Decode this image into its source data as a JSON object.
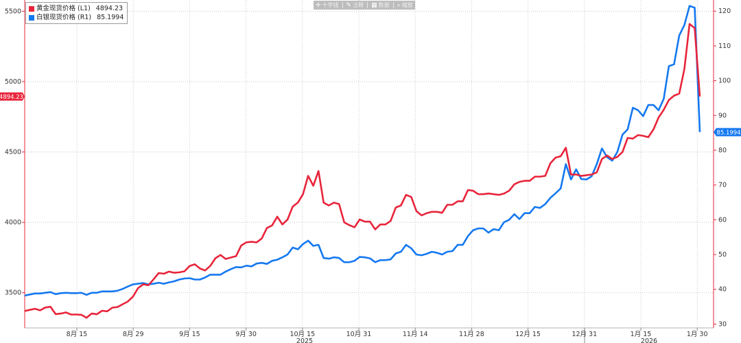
{
  "toolbar": {
    "items": [
      {
        "icon": "crosshair-icon",
        "glyph": "✛",
        "label": "十字线"
      },
      {
        "icon": "pencil-icon",
        "glyph": "✎",
        "label": "注释"
      },
      {
        "icon": "table-icon",
        "glyph": "▦",
        "label": "数据"
      },
      {
        "icon": "zoom-icon",
        "glyph": "⌕",
        "label": "缩放"
      }
    ]
  },
  "legend": [
    {
      "name": "黄金现货价格 (L1)",
      "value": "4894.23",
      "color": "#e8243a"
    },
    {
      "name": "白银现货价格 (R1)",
      "value": "85.1994",
      "color": "#1478f0"
    }
  ],
  "chart_data": {
    "type": "line",
    "year_labels": [
      "2025",
      "2026"
    ],
    "x_ticks": [
      "8月 15",
      "8月 29",
      "9月 15",
      "9月 30",
      "10月 15",
      "10月 31",
      "11月 14",
      "11月 28",
      "12月 15",
      "12月 31",
      "1月 15",
      "1月 30"
    ],
    "left_axis": {
      "min": 3250,
      "max": 5580,
      "ticks": [
        3500,
        4000,
        4500,
        5000,
        5500
      ],
      "last_value_label": "4894.23"
    },
    "right_axis": {
      "min": 28.9,
      "max": 123.2,
      "ticks": [
        30,
        40,
        50,
        60,
        70,
        80,
        90,
        100,
        110,
        120
      ],
      "last_value_label": "85.1994"
    },
    "grid": true,
    "series": [
      {
        "name": "黄金现货价格 (L1)",
        "axis": "left",
        "color": "#e8243a",
        "values": [
          3370,
          3378,
          3386,
          3375,
          3395,
          3400,
          3348,
          3352,
          3360,
          3345,
          3345,
          3343,
          3322,
          3352,
          3347,
          3372,
          3368,
          3394,
          3398,
          3418,
          3437,
          3472,
          3533,
          3560,
          3553,
          3595,
          3640,
          3635,
          3650,
          3642,
          3645,
          3652,
          3690,
          3702,
          3672,
          3658,
          3690,
          3745,
          3768,
          3740,
          3750,
          3760,
          3835,
          3858,
          3862,
          3858,
          3885,
          3960,
          3978,
          4040,
          3985,
          4020,
          4112,
          4140,
          4200,
          4330,
          4260,
          4365,
          4140,
          4120,
          4140,
          4130,
          4000,
          3980,
          3965,
          4020,
          4005,
          4005,
          3950,
          3985,
          3985,
          4010,
          4105,
          4120,
          4195,
          4180,
          4080,
          4050,
          4065,
          4075,
          4075,
          4068,
          4125,
          4125,
          4150,
          4150,
          4230,
          4225,
          4200,
          4200,
          4205,
          4200,
          4195,
          4205,
          4225,
          4270,
          4288,
          4295,
          4295,
          4325,
          4325,
          4330,
          4420,
          4460,
          4470,
          4530,
          4340,
          4340,
          4330,
          4335,
          4340,
          4355,
          4450,
          4475,
          4450,
          4465,
          4500,
          4600,
          4595,
          4620,
          4615,
          4605,
          4660,
          4745,
          4800,
          4870,
          4900,
          4915,
          5090,
          5410,
          5380,
          4894.23
        ]
      },
      {
        "name": "白银现货价格 (R1)",
        "axis": "right",
        "color": "#1478f0",
        "values": [
          38.2,
          38.5,
          38.8,
          38.8,
          39.0,
          39.2,
          38.6,
          38.9,
          39.0,
          38.9,
          38.9,
          39.0,
          38.4,
          39.0,
          39.0,
          39.4,
          39.4,
          39.4,
          39.6,
          40.1,
          40.8,
          41.4,
          41.6,
          41.8,
          41.4,
          41.6,
          41.9,
          41.6,
          42.0,
          42.3,
          42.8,
          43.1,
          43.2,
          42.8,
          42.8,
          43.4,
          44.2,
          44.2,
          44.2,
          45.1,
          45.8,
          46.4,
          46.3,
          46.8,
          46.6,
          47.4,
          47.6,
          47.3,
          48.2,
          48.5,
          49.2,
          50.0,
          52.0,
          51.5,
          53.0,
          54.0,
          52.5,
          52.8,
          49.0,
          48.8,
          49.2,
          49.0,
          47.8,
          47.8,
          48.2,
          49.3,
          49.2,
          48.9,
          47.8,
          48.4,
          48.4,
          48.6,
          50.3,
          50.8,
          52.8,
          51.8,
          50.0,
          49.8,
          50.2,
          50.8,
          50.5,
          50.0,
          50.8,
          51.0,
          52.8,
          52.8,
          55.3,
          57.0,
          57.5,
          57.5,
          56.3,
          57.3,
          57.0,
          59.3,
          60.0,
          61.6,
          60.2,
          61.9,
          61.9,
          63.7,
          63.4,
          64.5,
          66.3,
          67.6,
          69.0,
          76.0,
          71.6,
          74.5,
          71.7,
          71.6,
          72.5,
          76.0,
          80.5,
          78.0,
          77.0,
          79.5,
          84.5,
          86.0,
          92.2,
          91.5,
          89.8,
          93.0,
          93.0,
          91.5,
          94.8,
          104.2,
          104.7,
          113.0,
          116.0,
          121.5,
          121.0,
          85.1994
        ]
      }
    ]
  }
}
